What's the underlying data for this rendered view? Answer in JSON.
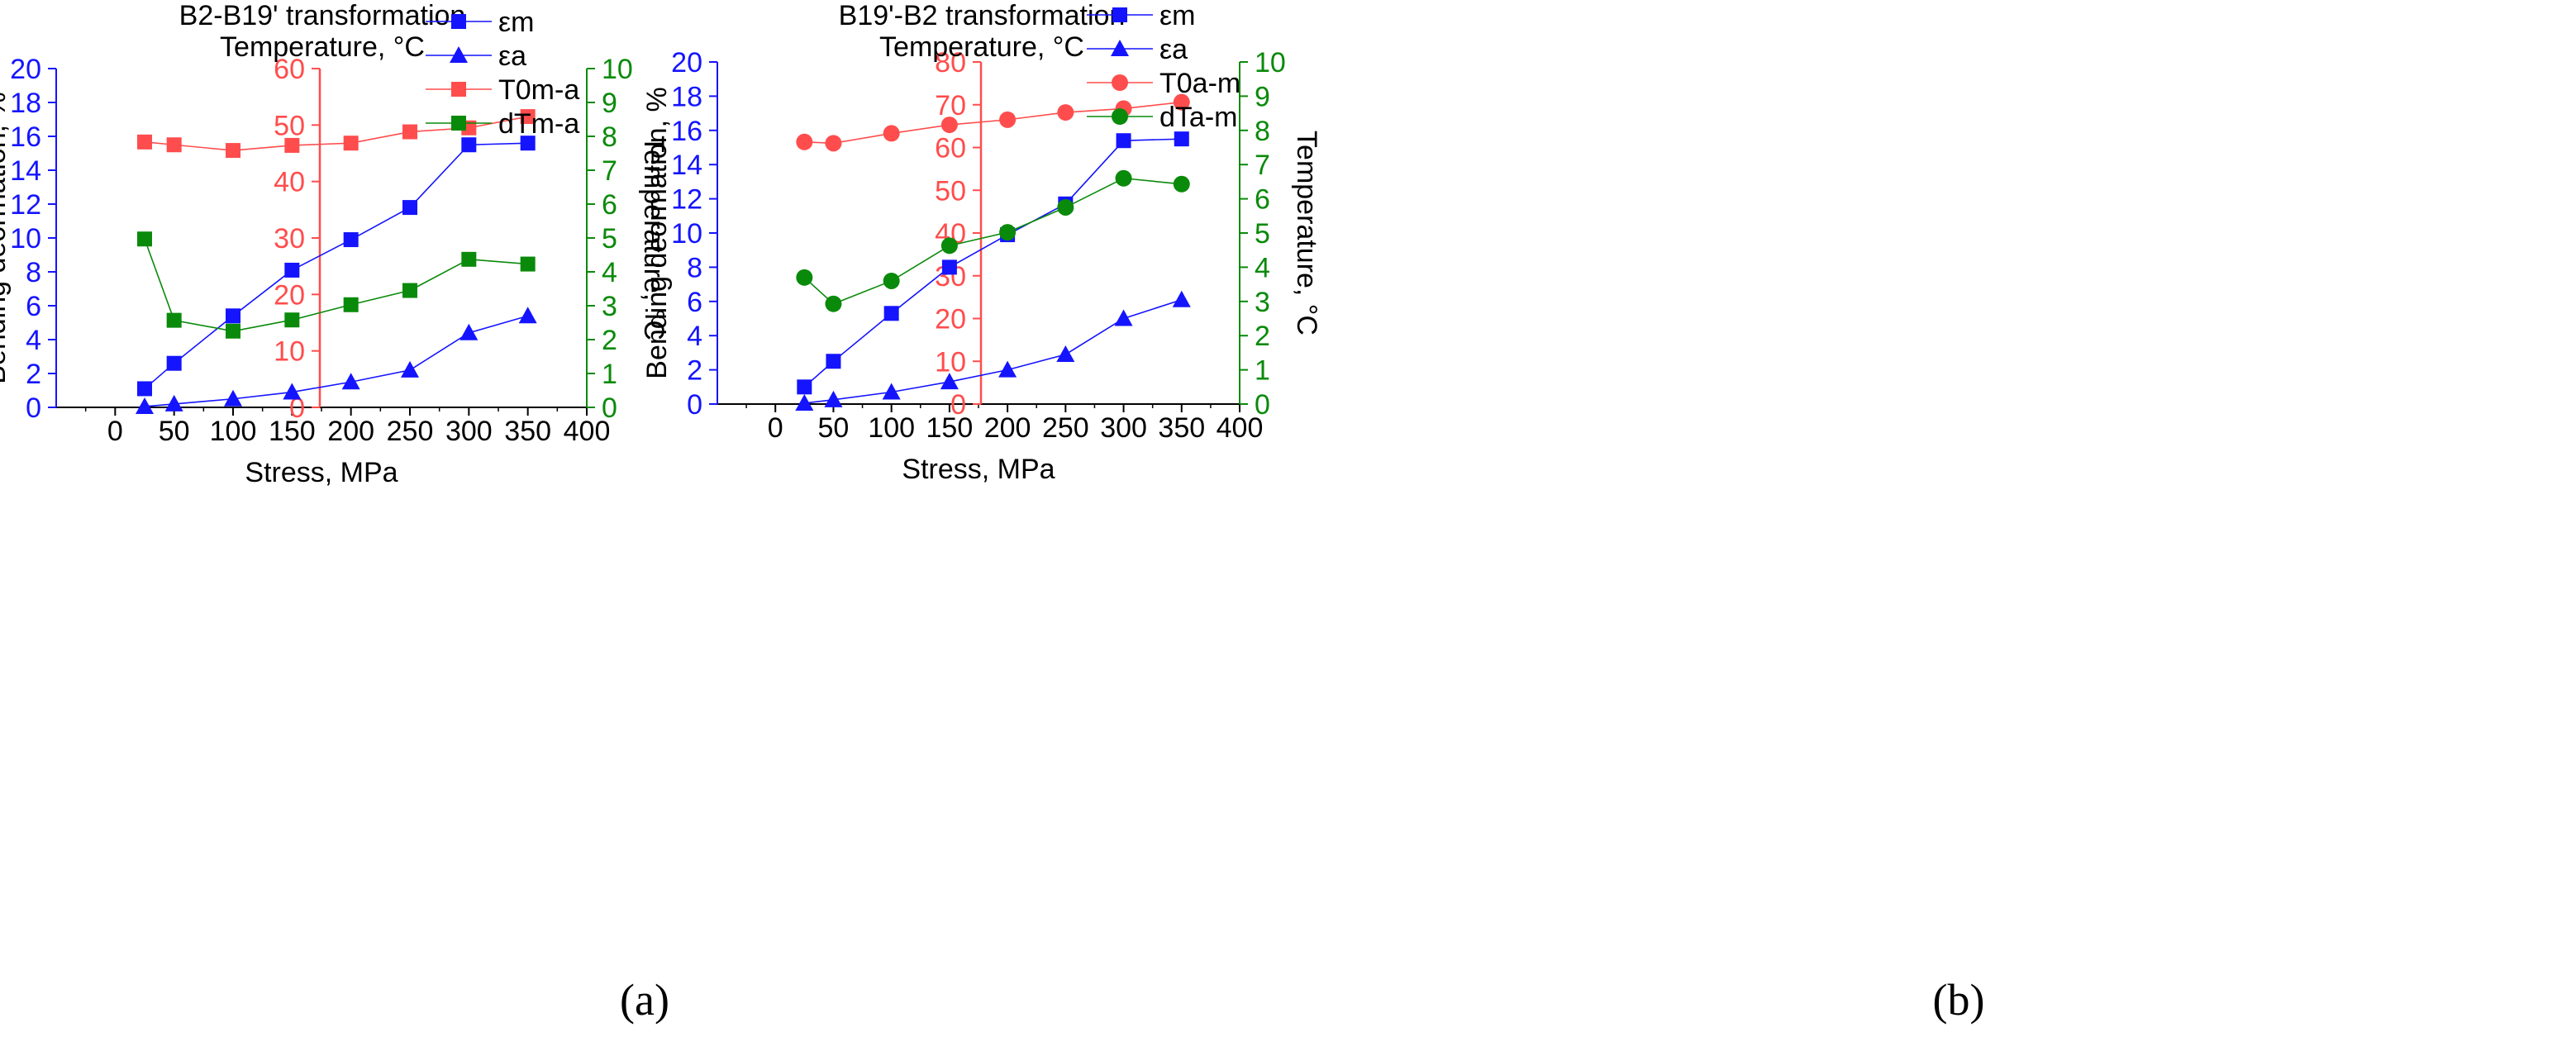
{
  "colors": {
    "blue": "#1414ff",
    "red": "#ff4d4d",
    "green": "#0a8a0a",
    "axis": "#000000"
  },
  "chart_data": [
    {
      "type": "line",
      "panel": "a",
      "caption_letter": "a",
      "caption": "(a)",
      "title": "B2-B19' transformation",
      "subtitle": "Temperature, °C",
      "xlabel": "Stress, MPa",
      "ylabel_left": "Bending deormation, %",
      "ylabel_right": "Temperature, °C",
      "xlim": [
        -50,
        400
      ],
      "xticks": [
        "0",
        "50",
        "100",
        "150",
        "200",
        "250",
        "300",
        "350",
        "400"
      ],
      "ylim_left": [
        0,
        20
      ],
      "yticks_left": [
        "0",
        "2",
        "4",
        "6",
        "8",
        "10",
        "12",
        "14",
        "16",
        "18",
        "20"
      ],
      "ylim_mid": [
        0,
        60
      ],
      "yticks_mid": [
        "0",
        "10",
        "20",
        "30",
        "40",
        "50",
        "60"
      ],
      "ylim_right": [
        0,
        10
      ],
      "yticks_right": [
        "0",
        "1",
        "2",
        "3",
        "4",
        "5",
        "6",
        "7",
        "8",
        "9",
        "10"
      ],
      "legend_position": "top-right",
      "series": [
        {
          "name": "εm",
          "axis": "left",
          "color": "blue",
          "marker": "square",
          "x": [
            25,
            50,
            100,
            150,
            200,
            250,
            300,
            350
          ],
          "y": [
            1.1,
            2.6,
            5.4,
            8.1,
            9.9,
            11.8,
            15.5,
            15.6
          ]
        },
        {
          "name": "εa",
          "axis": "left",
          "color": "blue",
          "marker": "triangle",
          "x": [
            25,
            50,
            100,
            150,
            200,
            250,
            300,
            350
          ],
          "y": [
            0.05,
            0.2,
            0.5,
            0.9,
            1.5,
            2.2,
            4.4,
            5.4
          ]
        },
        {
          "name": "T0m-a",
          "axis": "mid",
          "color": "red",
          "marker": "square",
          "x": [
            25,
            50,
            100,
            150,
            200,
            250,
            300,
            350
          ],
          "y": [
            47,
            46.5,
            45.5,
            46.4,
            46.8,
            48.8,
            49.5,
            51.5
          ]
        },
        {
          "name": "dTm-a",
          "axis": "right",
          "color": "green",
          "marker": "square",
          "x": [
            25,
            50,
            100,
            150,
            200,
            250,
            300,
            350
          ],
          "y": [
            4.97,
            2.57,
            2.25,
            2.58,
            3.03,
            3.45,
            4.37,
            4.23
          ]
        }
      ]
    },
    {
      "type": "line",
      "panel": "b",
      "caption_letter": "b",
      "caption": "(b)",
      "title": "B19'-B2 transformation",
      "subtitle": "Temperature, °C",
      "xlabel": "Stress, MPa",
      "ylabel_left": "Bending deormation, %",
      "ylabel_right": "Temperature, °C",
      "xlim": [
        -50,
        400
      ],
      "xticks": [
        "0",
        "50",
        "100",
        "150",
        "200",
        "250",
        "300",
        "350",
        "400"
      ],
      "ylim_left": [
        0,
        20
      ],
      "yticks_left": [
        "0",
        "2",
        "4",
        "6",
        "8",
        "10",
        "12",
        "14",
        "16",
        "18",
        "20"
      ],
      "ylim_mid": [
        0,
        80
      ],
      "yticks_mid": [
        "0",
        "10",
        "20",
        "30",
        "40",
        "50",
        "60",
        "70",
        "80"
      ],
      "ylim_right": [
        0,
        10
      ],
      "yticks_right": [
        "0",
        "1",
        "2",
        "3",
        "4",
        "5",
        "6",
        "7",
        "8",
        "9",
        "10"
      ],
      "legend_position": "top-right",
      "series": [
        {
          "name": "εm",
          "axis": "left",
          "color": "blue",
          "marker": "square",
          "x": [
            25,
            50,
            100,
            150,
            200,
            250,
            300,
            350
          ],
          "y": [
            1.0,
            2.5,
            5.3,
            8.0,
            9.9,
            11.7,
            15.4,
            15.5
          ]
        },
        {
          "name": "εa",
          "axis": "left",
          "color": "blue",
          "marker": "triangle",
          "x": [
            25,
            50,
            100,
            150,
            200,
            250,
            300,
            350
          ],
          "y": [
            0.05,
            0.25,
            0.7,
            1.3,
            2.0,
            2.9,
            5.0,
            6.1
          ]
        },
        {
          "name": "T0a-m",
          "axis": "mid",
          "color": "red",
          "marker": "circle",
          "x": [
            25,
            50,
            100,
            150,
            200,
            250,
            300,
            350
          ],
          "y": [
            61.3,
            61,
            63.3,
            65.3,
            66.5,
            68.2,
            69.1,
            70.6
          ]
        },
        {
          "name": "dTa-m",
          "axis": "right",
          "color": "green",
          "marker": "circle",
          "x": [
            25,
            50,
            100,
            150,
            200,
            250,
            300,
            350
          ],
          "y": [
            3.7,
            2.93,
            3.6,
            4.63,
            5.02,
            5.75,
            6.6,
            6.43
          ]
        }
      ]
    }
  ]
}
